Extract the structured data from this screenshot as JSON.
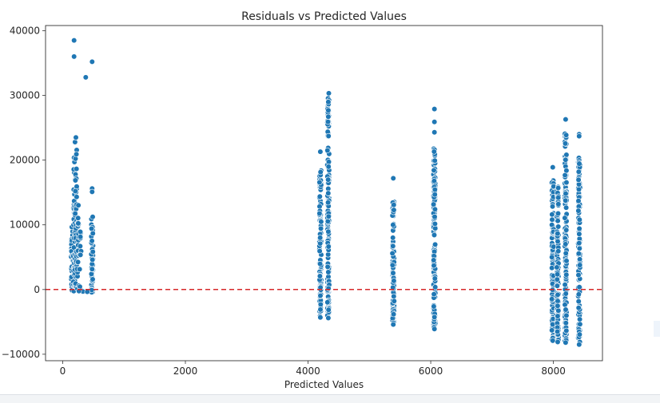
{
  "chart_data": {
    "type": "scatter",
    "title": "Residuals vs Predicted Values",
    "xlabel": "Predicted Values",
    "ylabel": "",
    "xlim": [
      -280,
      8800
    ],
    "ylim": [
      -11000,
      40800
    ],
    "xticks": [
      0,
      2000,
      4000,
      6000,
      8000
    ],
    "yticks": [
      -10000,
      0,
      10000,
      20000,
      30000,
      40000
    ],
    "xtick_labels": [
      "0",
      "2000",
      "4000",
      "6000",
      "8000"
    ],
    "ytick_labels": [
      "−10000",
      "0",
      "10000",
      "20000",
      "30000",
      "40000"
    ],
    "marker_color": "#1f77b4",
    "reference_line": {
      "y": 0,
      "color": "#d62728",
      "style": "dashed"
    },
    "grid": false,
    "clusters": [
      {
        "x": 150,
        "ymin": -200,
        "ymax": 10000,
        "count": 40
      },
      {
        "x": 185,
        "ymin": -300,
        "ymax": 20500,
        "count": 55
      },
      {
        "x": 215,
        "ymin": 200,
        "ymax": 23500,
        "count": 45
      },
      {
        "x": 250,
        "ymin": -200,
        "ymax": 13500,
        "count": 20
      },
      {
        "x": 290,
        "ymin": -200,
        "ymax": 9000,
        "count": 12
      },
      {
        "x": 480,
        "ymin": -500,
        "ymax": 12500,
        "count": 40
      },
      {
        "x": 4200,
        "ymin": -4200,
        "ymax": 18700,
        "count": 110
      },
      {
        "x": 4330,
        "ymin": -4200,
        "ymax": 30500,
        "count": 160
      },
      {
        "x": 5390,
        "ymin": -5300,
        "ymax": 14300,
        "count": 100
      },
      {
        "x": 6060,
        "ymin": -6000,
        "ymax": 21800,
        "count": 140
      },
      {
        "x": 7990,
        "ymin": -7800,
        "ymax": 17000,
        "count": 120
      },
      {
        "x": 8070,
        "ymin": -8000,
        "ymax": 16500,
        "count": 110
      },
      {
        "x": 8200,
        "ymin": -8000,
        "ymax": 24500,
        "count": 160
      },
      {
        "x": 8420,
        "ymin": -8400,
        "ymax": 20500,
        "count": 130
      }
    ],
    "points": [
      {
        "x": 185,
        "y": 38500
      },
      {
        "x": 185,
        "y": 36000
      },
      {
        "x": 375,
        "y": 32800
      },
      {
        "x": 480,
        "y": 35200
      },
      {
        "x": 215,
        "y": 23500
      },
      {
        "x": 480,
        "y": 15600
      },
      {
        "x": 480,
        "y": 15100
      },
      {
        "x": 4200,
        "y": 21300
      },
      {
        "x": 4330,
        "y": 29000
      },
      {
        "x": 4330,
        "y": 27700
      },
      {
        "x": 4330,
        "y": 26700
      },
      {
        "x": 5390,
        "y": 17200
      },
      {
        "x": 6060,
        "y": 27900
      },
      {
        "x": 6060,
        "y": 25900
      },
      {
        "x": 6060,
        "y": 24300
      },
      {
        "x": 7990,
        "y": 18900
      },
      {
        "x": 8200,
        "y": 26300
      },
      {
        "x": 8420,
        "y": 24000
      },
      {
        "x": 8420,
        "y": 23700
      },
      {
        "x": 7990,
        "y": -7900
      },
      {
        "x": 8070,
        "y": -8100
      },
      {
        "x": 8200,
        "y": -8200
      },
      {
        "x": 8420,
        "y": -8500
      },
      {
        "x": 6060,
        "y": -6100
      },
      {
        "x": 5390,
        "y": -5400
      },
      {
        "x": 4200,
        "y": -4300
      },
      {
        "x": 4330,
        "y": -4400
      },
      {
        "x": 330,
        "y": -300
      },
      {
        "x": 400,
        "y": -350
      },
      {
        "x": 265,
        "y": -250
      }
    ]
  }
}
